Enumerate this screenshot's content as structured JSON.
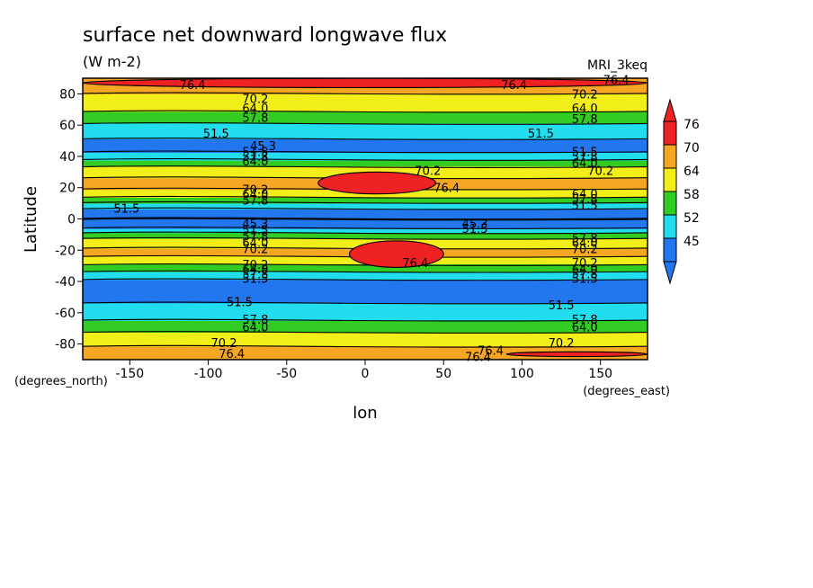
{
  "chart_data": {
    "type": "heatmap",
    "title": "surface net downward longwave flux",
    "units": "(W m-2)",
    "model": "MRI_3keq",
    "xlabel": "lon",
    "ylabel": "Latitude",
    "x_unit_label": "(degrees_east)",
    "y_unit_label": "(degrees_north)",
    "xlim": [
      -180,
      180
    ],
    "ylim": [
      -90,
      90
    ],
    "x_ticks": [
      -150,
      -100,
      -50,
      0,
      50,
      100,
      150
    ],
    "y_ticks": [
      -80,
      -60,
      -40,
      -20,
      0,
      20,
      40,
      60,
      80
    ],
    "x_tick_labels": [
      "-150",
      "-100",
      "-50",
      "0",
      "50",
      "100",
      "150"
    ],
    "y_tick_labels": [
      "-80",
      "-60",
      "-40",
      "-20",
      "0",
      "20",
      "40",
      "60",
      "80"
    ],
    "colorbar": {
      "labels": [
        "76",
        "70",
        "64",
        "58",
        "52",
        "45"
      ],
      "colors": [
        "#ee2222",
        "#f5a623",
        "#f2ee1a",
        "#33cc22",
        "#22ddee",
        "#2277ee"
      ],
      "triangle_top": "#ee2222",
      "triangle_bottom": "#2277ee"
    },
    "contour_levels": [
      45.3,
      51.5,
      57.8,
      64.0,
      70.2,
      76.4
    ],
    "zonal_profile": [
      {
        "lat": -90,
        "value": 71
      },
      {
        "lat": -85,
        "value": 73
      },
      {
        "lat": -80,
        "value": 69
      },
      {
        "lat": -75,
        "value": 66
      },
      {
        "lat": -70,
        "value": 62
      },
      {
        "lat": -65,
        "value": 58
      },
      {
        "lat": -60,
        "value": 54
      },
      {
        "lat": -55,
        "value": 52
      },
      {
        "lat": -50,
        "value": 50
      },
      {
        "lat": -45,
        "value": 48
      },
      {
        "lat": -40,
        "value": 50
      },
      {
        "lat": -35,
        "value": 56
      },
      {
        "lat": -30,
        "value": 63
      },
      {
        "lat": -25,
        "value": 70
      },
      {
        "lat": -20,
        "value": 71
      },
      {
        "lat": -15,
        "value": 68
      },
      {
        "lat": -10,
        "value": 60
      },
      {
        "lat": -5,
        "value": 50
      },
      {
        "lat": 0,
        "value": 45
      },
      {
        "lat": 5,
        "value": 49
      },
      {
        "lat": 10,
        "value": 57
      },
      {
        "lat": 15,
        "value": 66
      },
      {
        "lat": 20,
        "value": 71
      },
      {
        "lat": 25,
        "value": 71
      },
      {
        "lat": 30,
        "value": 68
      },
      {
        "lat": 35,
        "value": 62
      },
      {
        "lat": 40,
        "value": 55
      },
      {
        "lat": 45,
        "value": 49
      },
      {
        "lat": 50,
        "value": 51
      },
      {
        "lat": 55,
        "value": 53
      },
      {
        "lat": 60,
        "value": 57
      },
      {
        "lat": 65,
        "value": 61
      },
      {
        "lat": 70,
        "value": 65
      },
      {
        "lat": 75,
        "value": 68
      },
      {
        "lat": 80,
        "value": 70
      },
      {
        "lat": 85,
        "value": 74
      },
      {
        "lat": 90,
        "value": 76
      }
    ],
    "features": [
      {
        "lon_min": -30,
        "lon_max": 45,
        "lat_min": 16,
        "lat_max": 30,
        "value": 78
      },
      {
        "lon_min": -10,
        "lon_max": 50,
        "lat_min": -31,
        "lat_max": -14,
        "value": 78
      },
      {
        "lon_min": -180,
        "lon_max": 180,
        "lat_min": 84,
        "lat_max": 90,
        "value": 78
      },
      {
        "lon_min": 90,
        "lon_max": 180,
        "lat_min": -88,
        "lat_max": -85,
        "value": 78
      }
    ],
    "contour_labels": [
      {
        "text": "76.4",
        "lon": -110,
        "lat": 86
      },
      {
        "text": "76.4",
        "lon": 95,
        "lat": 86
      },
      {
        "text": "76.4",
        "lon": 160,
        "lat": 89
      },
      {
        "text": "70.2",
        "lon": -70,
        "lat": 77
      },
      {
        "text": "70.2",
        "lon": 140,
        "lat": 80
      },
      {
        "text": "64.0",
        "lon": -70,
        "lat": 71
      },
      {
        "text": "64.0",
        "lon": 140,
        "lat": 71
      },
      {
        "text": "57.8",
        "lon": -70,
        "lat": 65
      },
      {
        "text": "57.8",
        "lon": 140,
        "lat": 64
      },
      {
        "text": "51.5",
        "lon": -95,
        "lat": 55
      },
      {
        "text": "51.5",
        "lon": 112,
        "lat": 55
      },
      {
        "text": "45.3",
        "lon": -65,
        "lat": 47
      },
      {
        "text": "51.5",
        "lon": -70,
        "lat": 43
      },
      {
        "text": "57.8",
        "lon": -70,
        "lat": 40
      },
      {
        "text": "64.0",
        "lon": -70,
        "lat": 37
      },
      {
        "text": "51.5",
        "lon": 140,
        "lat": 43
      },
      {
        "text": "57.8",
        "lon": 140,
        "lat": 40
      },
      {
        "text": "64.0",
        "lon": 140,
        "lat": 36
      },
      {
        "text": "70.2",
        "lon": 40,
        "lat": 31
      },
      {
        "text": "70.2",
        "lon": 150,
        "lat": 31
      },
      {
        "text": "76.4",
        "lon": 52,
        "lat": 20
      },
      {
        "text": "70.2",
        "lon": -70,
        "lat": 19
      },
      {
        "text": "64.0",
        "lon": -70,
        "lat": 16
      },
      {
        "text": "57.8",
        "lon": -70,
        "lat": 12
      },
      {
        "text": "64.0",
        "lon": 140,
        "lat": 16
      },
      {
        "text": "57.8",
        "lon": 140,
        "lat": 13
      },
      {
        "text": "51.5",
        "lon": 140,
        "lat": 9
      },
      {
        "text": "51.5",
        "lon": -152,
        "lat": 7
      },
      {
        "text": "45.3",
        "lon": -70,
        "lat": -3
      },
      {
        "text": "51.5",
        "lon": -70,
        "lat": -7
      },
      {
        "text": "57.8",
        "lon": -70,
        "lat": -11
      },
      {
        "text": "64.0",
        "lon": -70,
        "lat": -15
      },
      {
        "text": "70.2",
        "lon": -70,
        "lat": -19
      },
      {
        "text": "45.3",
        "lon": 70,
        "lat": -3
      },
      {
        "text": "51.5",
        "lon": 70,
        "lat": -6
      },
      {
        "text": "57.8",
        "lon": 140,
        "lat": -12
      },
      {
        "text": "64.0",
        "lon": 140,
        "lat": -15
      },
      {
        "text": "70.2",
        "lon": 140,
        "lat": -19
      },
      {
        "text": "76.4",
        "lon": 32,
        "lat": -28
      },
      {
        "text": "70.2",
        "lon": -70,
        "lat": -29
      },
      {
        "text": "64.0",
        "lon": -70,
        "lat": -32
      },
      {
        "text": "57.8",
        "lon": -70,
        "lat": -35
      },
      {
        "text": "51.5",
        "lon": -70,
        "lat": -38
      },
      {
        "text": "70.2",
        "lon": 140,
        "lat": -28
      },
      {
        "text": "64.0",
        "lon": 140,
        "lat": -32
      },
      {
        "text": "57.8",
        "lon": 140,
        "lat": -35
      },
      {
        "text": "51.5",
        "lon": 140,
        "lat": -38
      },
      {
        "text": "51.5",
        "lon": -80,
        "lat": -53
      },
      {
        "text": "51.5",
        "lon": 125,
        "lat": -55
      },
      {
        "text": "57.8",
        "lon": -70,
        "lat": -64
      },
      {
        "text": "64.0",
        "lon": -70,
        "lat": -69
      },
      {
        "text": "57.8",
        "lon": 140,
        "lat": -64
      },
      {
        "text": "64.0",
        "lon": 140,
        "lat": -69
      },
      {
        "text": "70.2",
        "lon": -90,
        "lat": -79
      },
      {
        "text": "70.2",
        "lon": 125,
        "lat": -79
      },
      {
        "text": "76.4",
        "lon": -85,
        "lat": -86
      },
      {
        "text": "76.4",
        "lon": 80,
        "lat": -84
      },
      {
        "text": "76.4",
        "lon": 72,
        "lat": -88
      }
    ]
  }
}
